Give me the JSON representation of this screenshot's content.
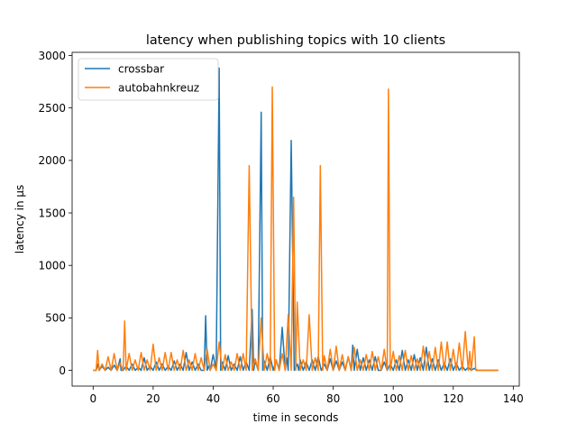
{
  "chart_data": {
    "type": "line",
    "title": "latency when publishing topics with 10 clients",
    "xlabel": "time in seconds",
    "ylabel": "latency in µs",
    "xlim": [
      -7,
      142
    ],
    "ylim": [
      -150,
      3030
    ],
    "xticks": [
      0,
      20,
      40,
      60,
      80,
      100,
      120,
      140
    ],
    "yticks": [
      0,
      500,
      1000,
      1500,
      2000,
      2500,
      3000
    ],
    "grid": false,
    "legend": {
      "placement": "top-left",
      "entries": [
        "crossbar",
        "autobahnkreuz"
      ]
    },
    "series": [
      {
        "name": "crossbar",
        "color": "#1f77b4",
        "x": [
          0,
          1,
          1.5,
          2,
          3,
          4,
          5,
          6,
          7,
          8,
          9,
          9.3,
          10,
          11,
          12,
          13,
          14,
          15,
          16,
          17,
          18,
          19,
          20,
          21,
          22,
          23,
          24,
          25,
          26,
          27,
          28,
          29,
          30,
          31,
          32,
          33,
          34,
          35,
          36,
          37,
          37.5,
          38,
          38.5,
          39,
          40,
          41,
          42,
          42.5,
          43,
          44,
          45,
          46,
          47,
          48,
          49,
          50,
          51,
          52,
          53,
          53.5,
          54,
          55,
          56,
          56.5,
          57,
          58,
          59,
          60,
          61,
          62,
          63,
          64,
          64.5,
          65,
          66,
          67,
          68,
          68.5,
          69,
          70,
          71,
          72,
          73,
          74,
          75,
          76,
          77,
          78,
          79,
          80,
          81,
          82,
          83,
          84,
          85,
          86,
          86.5,
          87,
          88,
          89,
          90,
          91,
          92,
          93,
          94,
          95,
          96,
          97,
          98,
          99,
          100,
          101,
          102,
          103,
          104,
          105,
          106,
          107,
          108,
          109,
          110,
          111,
          112,
          113,
          114,
          115,
          116,
          117,
          118,
          119,
          120,
          121,
          122,
          123,
          124,
          125,
          126,
          127,
          128,
          129,
          130,
          131,
          132,
          133,
          134,
          135
        ],
        "y": [
          0,
          0,
          60,
          0,
          40,
          0,
          30,
          0,
          50,
          0,
          110,
          0,
          0,
          40,
          0,
          60,
          0,
          30,
          0,
          120,
          0,
          40,
          0,
          80,
          0,
          60,
          0,
          40,
          0,
          90,
          0,
          60,
          0,
          170,
          0,
          80,
          0,
          60,
          0,
          0,
          520,
          0,
          40,
          0,
          150,
          0,
          2880,
          0,
          80,
          0,
          140,
          0,
          60,
          0,
          130,
          0,
          80,
          0,
          580,
          0,
          90,
          0,
          2460,
          0,
          90,
          0,
          130,
          0,
          100,
          0,
          410,
          0,
          120,
          0,
          2190,
          0,
          60,
          0,
          100,
          0,
          80,
          0,
          100,
          0,
          130,
          0,
          60,
          0,
          110,
          0,
          90,
          0,
          80,
          0,
          130,
          0,
          240,
          0,
          200,
          0,
          120,
          0,
          100,
          0,
          130,
          0,
          0,
          80,
          0,
          60,
          0,
          100,
          0,
          190,
          0,
          100,
          0,
          150,
          0,
          120,
          0,
          220,
          0,
          110,
          0,
          100,
          0,
          70,
          0,
          110,
          0,
          70,
          0,
          40,
          0,
          30,
          0,
          20,
          0,
          0,
          0,
          0,
          0,
          0,
          0,
          0
        ]
      },
      {
        "name": "autobahnkreuz",
        "color": "#ff7f0e",
        "x": [
          0,
          1,
          1.5,
          2,
          3,
          4,
          5,
          6,
          7,
          8,
          9,
          10,
          10.5,
          11,
          12,
          13,
          14,
          15,
          16,
          17,
          18,
          19,
          20,
          21,
          22,
          23,
          24,
          25,
          26,
          27,
          28,
          29,
          30,
          31,
          32,
          33,
          34,
          35,
          36,
          37,
          38,
          39,
          40,
          41,
          42,
          43,
          44,
          45,
          46,
          47,
          48,
          49,
          50,
          51,
          52,
          53,
          54,
          55,
          56,
          57,
          58,
          59,
          59.7,
          60.5,
          61,
          62,
          63,
          64,
          65,
          66,
          66.8,
          67.5,
          68,
          69,
          70,
          71,
          72,
          73,
          74,
          75,
          75.7,
          76.5,
          77,
          78,
          79,
          80,
          81,
          82,
          83,
          84,
          85,
          86,
          87,
          88,
          89,
          90,
          91,
          92,
          93,
          94,
          95,
          96,
          97,
          98,
          98.4,
          99,
          100,
          101,
          102,
          103,
          104,
          105,
          106,
          107,
          108,
          109,
          110,
          111,
          112,
          113,
          114,
          115,
          116,
          117,
          118,
          119,
          120,
          121,
          122,
          123,
          124,
          125,
          125.5,
          126,
          127,
          127.5,
          128,
          129,
          130,
          131,
          132,
          133,
          134,
          135
        ],
        "y": [
          0,
          0,
          190,
          0,
          60,
          0,
          130,
          0,
          160,
          0,
          70,
          0,
          470,
          0,
          160,
          0,
          100,
          0,
          170,
          0,
          100,
          0,
          250,
          0,
          120,
          0,
          170,
          0,
          170,
          0,
          100,
          0,
          190,
          0,
          100,
          0,
          160,
          0,
          120,
          0,
          200,
          0,
          60,
          0,
          270,
          0,
          150,
          0,
          80,
          0,
          160,
          0,
          160,
          0,
          1950,
          0,
          110,
          0,
          500,
          0,
          160,
          0,
          2700,
          0,
          100,
          0,
          160,
          0,
          530,
          0,
          1650,
          0,
          650,
          0,
          100,
          0,
          530,
          0,
          120,
          0,
          1950,
          0,
          140,
          0,
          200,
          0,
          230,
          0,
          150,
          0,
          130,
          0,
          220,
          0,
          100,
          0,
          150,
          0,
          180,
          0,
          130,
          0,
          200,
          0,
          2680,
          0,
          180,
          0,
          140,
          0,
          190,
          0,
          140,
          0,
          110,
          0,
          230,
          0,
          180,
          0,
          220,
          0,
          270,
          0,
          270,
          0,
          200,
          0,
          260,
          0,
          370,
          0,
          180,
          0,
          320,
          0,
          0,
          0,
          0,
          0,
          0,
          0,
          0,
          0
        ]
      }
    ]
  }
}
